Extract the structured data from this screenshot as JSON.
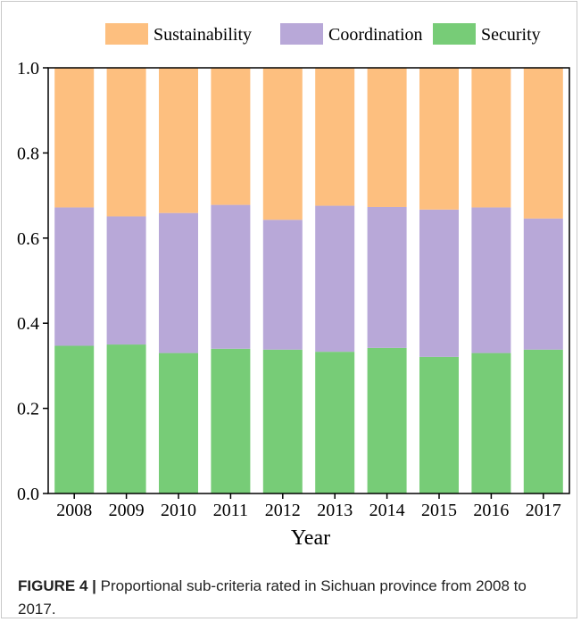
{
  "caption": {
    "label": "FIGURE 4 |",
    "text": "Proportional sub-criteria rated in Sichuan province from 2008 to 2017."
  },
  "colors": {
    "Sustainability": "#fdbf7f",
    "Coordination": "#b8a8d8",
    "Security": "#77cc77",
    "axis": "#000000"
  },
  "chart_data": {
    "type": "bar",
    "stacked": true,
    "title": "",
    "xlabel": "Year",
    "ylabel": "",
    "ylim": [
      0,
      1.0
    ],
    "yticks": [
      "0.0",
      "0.2",
      "0.4",
      "0.6",
      "0.8",
      "1.0"
    ],
    "categories": [
      "2008",
      "2009",
      "2010",
      "2011",
      "2012",
      "2013",
      "2014",
      "2015",
      "2016",
      "2017"
    ],
    "legend_position": "top",
    "series": [
      {
        "name": "Security",
        "values": [
          0.347,
          0.35,
          0.33,
          0.34,
          0.338,
          0.333,
          0.342,
          0.321,
          0.33,
          0.338
        ]
      },
      {
        "name": "Coordination",
        "values": [
          0.325,
          0.301,
          0.329,
          0.338,
          0.305,
          0.343,
          0.331,
          0.346,
          0.342,
          0.308
        ]
      },
      {
        "name": "Sustainability",
        "values": [
          0.328,
          0.349,
          0.341,
          0.322,
          0.357,
          0.324,
          0.327,
          0.333,
          0.328,
          0.354
        ]
      }
    ]
  }
}
